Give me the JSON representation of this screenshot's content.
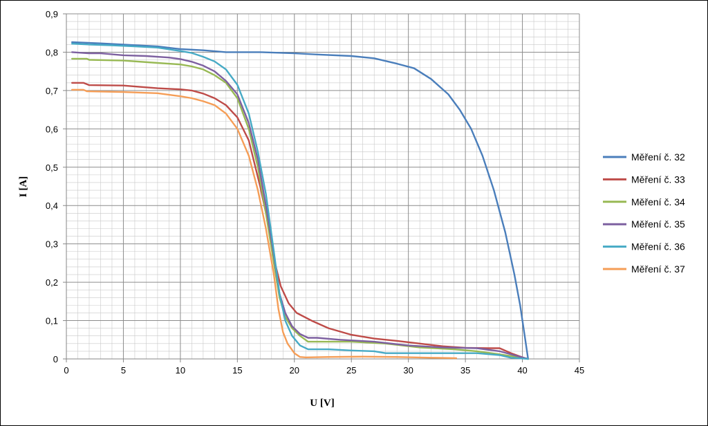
{
  "chart_data": {
    "type": "line",
    "title": "",
    "xlabel": "U [V]",
    "ylabel": "I [A]",
    "xlim": [
      0,
      45
    ],
    "ylim": [
      0,
      0.9
    ],
    "x_ticks": [
      0,
      5,
      10,
      15,
      20,
      25,
      30,
      35,
      40,
      45
    ],
    "y_ticks": [
      0,
      0.1,
      0.2,
      0.3,
      0.4,
      0.5,
      0.6,
      0.7,
      0.8,
      0.9
    ],
    "y_tick_labels": [
      "0",
      "0,1",
      "0,2",
      "0,3",
      "0,4",
      "0,5",
      "0,6",
      "0,7",
      "0,8",
      "0,9"
    ],
    "x_tick_labels": [
      "0",
      "5",
      "10",
      "15",
      "20",
      "25",
      "30",
      "35",
      "40",
      "45"
    ],
    "grid": true,
    "legend_position": "right",
    "series": [
      {
        "name": "Měření č. 32",
        "color": "#4a7ebb",
        "points": [
          [
            0.5,
            0.826
          ],
          [
            3,
            0.823
          ],
          [
            5,
            0.82
          ],
          [
            8,
            0.815
          ],
          [
            10,
            0.808
          ],
          [
            12,
            0.805
          ],
          [
            14,
            0.8
          ],
          [
            17,
            0.8
          ],
          [
            20,
            0.797
          ],
          [
            22,
            0.794
          ],
          [
            25,
            0.79
          ],
          [
            27,
            0.784
          ],
          [
            29,
            0.77
          ],
          [
            30.5,
            0.758
          ],
          [
            32,
            0.73
          ],
          [
            33.5,
            0.69
          ],
          [
            34.5,
            0.65
          ],
          [
            35.5,
            0.6
          ],
          [
            36.5,
            0.53
          ],
          [
            37.5,
            0.44
          ],
          [
            38.5,
            0.33
          ],
          [
            39.3,
            0.22
          ],
          [
            39.8,
            0.14
          ],
          [
            40.2,
            0.06
          ],
          [
            40.5,
            0
          ]
        ]
      },
      {
        "name": "Měření č. 33",
        "color": "#be4b48",
        "points": [
          [
            0.5,
            0.72
          ],
          [
            1.5,
            0.72
          ],
          [
            2,
            0.714
          ],
          [
            5,
            0.713
          ],
          [
            8,
            0.706
          ],
          [
            10,
            0.703
          ],
          [
            11,
            0.7
          ],
          [
            12,
            0.692
          ],
          [
            13,
            0.68
          ],
          [
            14,
            0.662
          ],
          [
            15,
            0.63
          ],
          [
            16,
            0.57
          ],
          [
            17,
            0.45
          ],
          [
            17.8,
            0.34
          ],
          [
            18.3,
            0.25
          ],
          [
            18.8,
            0.19
          ],
          [
            19.5,
            0.145
          ],
          [
            20.2,
            0.12
          ],
          [
            21.5,
            0.1
          ],
          [
            23,
            0.08
          ],
          [
            25,
            0.063
          ],
          [
            27,
            0.053
          ],
          [
            29,
            0.047
          ],
          [
            31,
            0.04
          ],
          [
            33,
            0.033
          ],
          [
            35,
            0.029
          ],
          [
            37,
            0.028
          ],
          [
            38,
            0.028
          ],
          [
            39,
            0.015
          ],
          [
            40.2,
            0.002
          ]
        ]
      },
      {
        "name": "Měření č. 34",
        "color": "#98b954",
        "points": [
          [
            0.5,
            0.783
          ],
          [
            1.8,
            0.783
          ],
          [
            2,
            0.78
          ],
          [
            5,
            0.778
          ],
          [
            8,
            0.772
          ],
          [
            10,
            0.768
          ],
          [
            11,
            0.763
          ],
          [
            12,
            0.755
          ],
          [
            13,
            0.74
          ],
          [
            14,
            0.72
          ],
          [
            15,
            0.68
          ],
          [
            16,
            0.6
          ],
          [
            16.8,
            0.5
          ],
          [
            17.5,
            0.38
          ],
          [
            18.2,
            0.25
          ],
          [
            18.7,
            0.16
          ],
          [
            19.2,
            0.11
          ],
          [
            19.8,
            0.08
          ],
          [
            20.5,
            0.06
          ],
          [
            21.2,
            0.045
          ],
          [
            23,
            0.045
          ],
          [
            25,
            0.045
          ],
          [
            28,
            0.04
          ],
          [
            31,
            0.03
          ],
          [
            34,
            0.025
          ],
          [
            36,
            0.02
          ],
          [
            38,
            0.012
          ],
          [
            39.5,
            0.005
          ],
          [
            40.5,
            0
          ]
        ]
      },
      {
        "name": "Měření č. 35",
        "color": "#7d60a0",
        "points": [
          [
            0.5,
            0.8
          ],
          [
            2,
            0.797
          ],
          [
            3,
            0.797
          ],
          [
            5,
            0.792
          ],
          [
            7,
            0.79
          ],
          [
            9,
            0.786
          ],
          [
            10,
            0.782
          ],
          [
            11,
            0.775
          ],
          [
            12,
            0.765
          ],
          [
            13,
            0.75
          ],
          [
            14,
            0.725
          ],
          [
            15,
            0.69
          ],
          [
            16,
            0.615
          ],
          [
            16.8,
            0.52
          ],
          [
            17.5,
            0.4
          ],
          [
            18.2,
            0.27
          ],
          [
            18.7,
            0.17
          ],
          [
            19.2,
            0.12
          ],
          [
            19.8,
            0.085
          ],
          [
            20.5,
            0.065
          ],
          [
            21.2,
            0.055
          ],
          [
            22,
            0.055
          ],
          [
            24,
            0.05
          ],
          [
            27,
            0.045
          ],
          [
            30,
            0.035
          ],
          [
            33,
            0.03
          ],
          [
            36,
            0.028
          ],
          [
            38,
            0.02
          ],
          [
            39.5,
            0.008
          ],
          [
            40.5,
            0
          ]
        ]
      },
      {
        "name": "Měření č. 36",
        "color": "#46aac5",
        "points": [
          [
            0.5,
            0.822
          ],
          [
            2,
            0.82
          ],
          [
            4,
            0.818
          ],
          [
            6,
            0.815
          ],
          [
            8,
            0.812
          ],
          [
            10,
            0.803
          ],
          [
            11,
            0.798
          ],
          [
            12,
            0.788
          ],
          [
            13,
            0.776
          ],
          [
            14,
            0.755
          ],
          [
            15,
            0.715
          ],
          [
            16,
            0.64
          ],
          [
            16.8,
            0.54
          ],
          [
            17.5,
            0.43
          ],
          [
            18.2,
            0.28
          ],
          [
            18.7,
            0.17
          ],
          [
            19.2,
            0.1
          ],
          [
            19.8,
            0.06
          ],
          [
            20.5,
            0.035
          ],
          [
            21.2,
            0.025
          ],
          [
            23,
            0.025
          ],
          [
            25,
            0.022
          ],
          [
            27,
            0.02
          ],
          [
            28,
            0.015
          ],
          [
            31,
            0.015
          ],
          [
            34,
            0.015
          ],
          [
            36,
            0.015
          ],
          [
            38,
            0.01
          ],
          [
            39,
            0.003
          ],
          [
            40.5,
            0
          ]
        ]
      },
      {
        "name": "Měření č. 37",
        "color": "#f59d56",
        "points": [
          [
            0.5,
            0.702
          ],
          [
            1.5,
            0.702
          ],
          [
            1.8,
            0.698
          ],
          [
            5,
            0.696
          ],
          [
            8,
            0.693
          ],
          [
            10,
            0.685
          ],
          [
            11,
            0.68
          ],
          [
            12,
            0.672
          ],
          [
            13,
            0.662
          ],
          [
            14,
            0.64
          ],
          [
            15,
            0.6
          ],
          [
            16,
            0.53
          ],
          [
            16.8,
            0.44
          ],
          [
            17.5,
            0.34
          ],
          [
            18.2,
            0.22
          ],
          [
            18.6,
            0.13
          ],
          [
            19,
            0.07
          ],
          [
            19.4,
            0.04
          ],
          [
            20,
            0.015
          ],
          [
            20.5,
            0.005
          ],
          [
            21,
            0.004
          ],
          [
            23,
            0.005
          ],
          [
            26,
            0.006
          ],
          [
            29,
            0.005
          ],
          [
            32,
            0.003
          ],
          [
            34.2,
            0.002
          ]
        ]
      }
    ]
  }
}
